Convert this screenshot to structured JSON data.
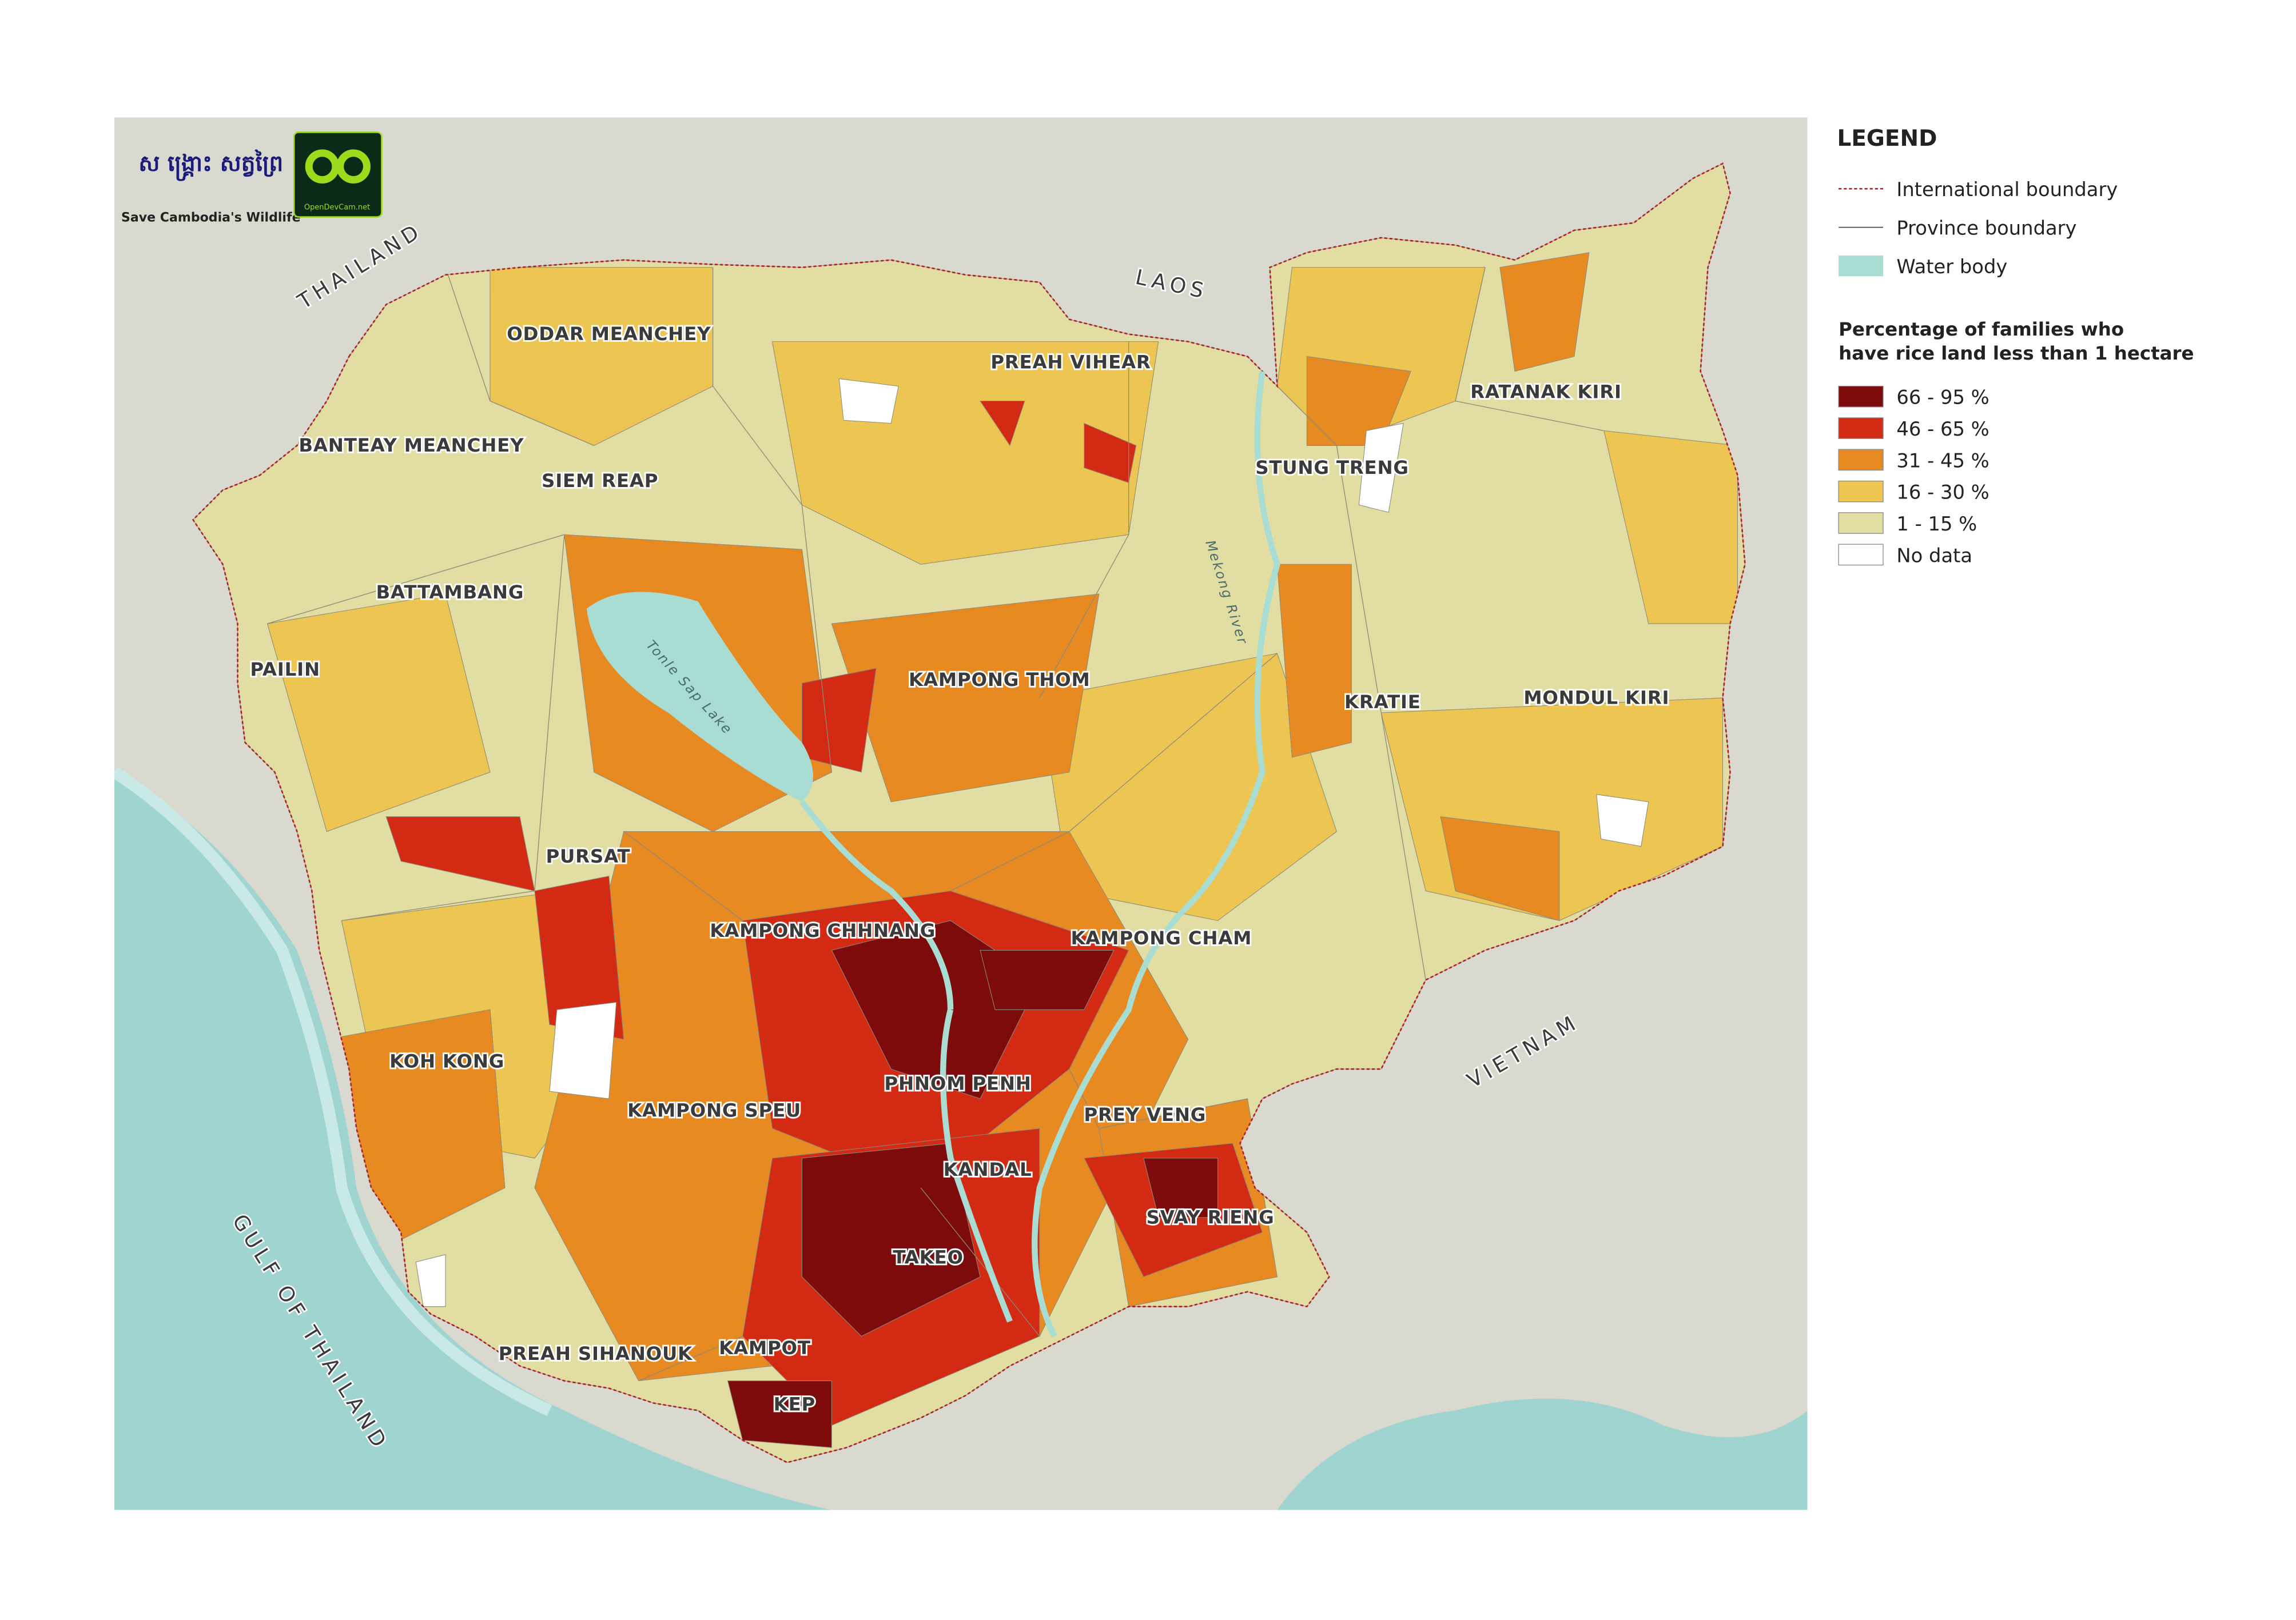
{
  "logos": {
    "org": "Save Cambodia's Wildlife",
    "site": "OpenDevCam.net"
  },
  "map_labels": {
    "countries": [
      "THAILAND",
      "LAOS",
      "VIETNAM"
    ],
    "sea": "GULF OF THAILAND",
    "water": [
      "Tonle Sap Lake",
      "Mekong River"
    ],
    "provinces": [
      "ODDAR MEANCHEY",
      "PREAH VIHEAR",
      "RATANAK KIRI",
      "BANTEAY MEANCHEY",
      "SIEM REAP",
      "STUNG TRENG",
      "BATTAMBANG",
      "PAILIN",
      "KAMPONG THOM",
      "KRATIE",
      "MONDUL KIRI",
      "PURSAT",
      "KAMPONG CHHNANG",
      "KAMPONG CHAM",
      "KOH KONG",
      "PHNOM PENH",
      "KAMPONG SPEU",
      "PREY VENG",
      "KANDAL",
      "SVAY RIENG",
      "TAKEO",
      "PREAH SIHANOUK",
      "KAMPOT",
      "KEP"
    ]
  },
  "legend": {
    "title": "LEGEND",
    "boundaries": [
      "International boundary",
      "Province boundary",
      "Water body"
    ],
    "classes_title": [
      "Percentage of families who",
      "have rice land less than 1 hectare"
    ],
    "classes": [
      {
        "label": "66 - 95 %",
        "color": "#7d0b0b"
      },
      {
        "label": "46 - 65 %",
        "color": "#d32a14"
      },
      {
        "label": "31 - 45 %",
        "color": "#e88a22"
      },
      {
        "label": "16 - 30 %",
        "color": "#ecc552"
      },
      {
        "label": "1 - 15 %",
        "color": "#e2dda2"
      },
      {
        "label": "No data",
        "color": "#ffffff"
      }
    ]
  }
}
